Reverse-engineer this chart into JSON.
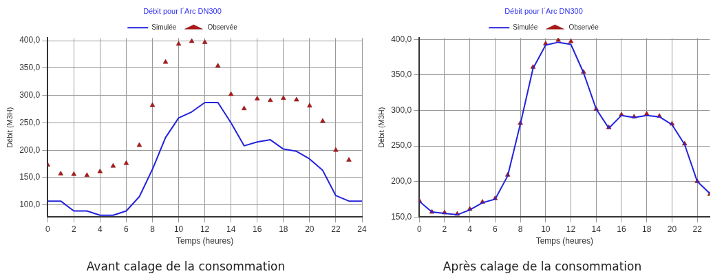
{
  "chart_data": [
    {
      "type": "line",
      "title": "Débit pour l´Arc DN300",
      "xlabel": "Temps (heures)",
      "ylabel": "Débit (M3H)",
      "legend": "top",
      "grid": true,
      "x": [
        0,
        1,
        2,
        3,
        4,
        5,
        6,
        7,
        8,
        9,
        10,
        11,
        12,
        13,
        14,
        15,
        16,
        17,
        18,
        19,
        20,
        21,
        22,
        23
      ],
      "series": [
        {
          "name": "Simulée",
          "type": "line",
          "marker": "none",
          "color": "#2222dd",
          "x": [
            0,
            1,
            2,
            3,
            4,
            5,
            6,
            7,
            8,
            9,
            10,
            11,
            12,
            13,
            14,
            15,
            16,
            17,
            18,
            19,
            20,
            21,
            22,
            23,
            24
          ],
          "values": [
            107,
            107,
            89,
            89,
            81,
            81,
            89,
            115,
            165,
            223,
            259,
            270,
            287,
            287,
            250,
            208,
            215,
            219,
            202,
            198,
            184,
            163,
            117,
            107,
            107
          ]
        },
        {
          "name": "Observée",
          "type": "scatter",
          "marker": "triangle",
          "color": "#b01818",
          "values": [
            173,
            157,
            156,
            154,
            161,
            171,
            176,
            209,
            282,
            361,
            394,
            399,
            397,
            354,
            302,
            276,
            294,
            291,
            295,
            292,
            281,
            253,
            200,
            182
          ]
        }
      ],
      "xlim": [
        0,
        24
      ],
      "xticks": [
        0,
        2,
        4,
        6,
        8,
        10,
        12,
        14,
        16,
        18,
        20,
        22,
        24
      ],
      "ylim": [
        78,
        405
      ],
      "yticks": [
        {
          "value": 100,
          "label": "100,0"
        },
        {
          "value": 150,
          "label": "150,0"
        },
        {
          "value": 200,
          "label": "200,0"
        },
        {
          "value": 250,
          "label": "250,0"
        },
        {
          "value": 300,
          "label": "300,0"
        },
        {
          "value": 350,
          "label": "350,0"
        },
        {
          "value": 400,
          "label": "400,0"
        }
      ],
      "annotations": [
        "Avant calage de la consommation"
      ]
    },
    {
      "type": "line",
      "title": "Débit pour l´Arc DN300",
      "xlabel": "Temps (heures)",
      "ylabel": "Débit (M3H)",
      "legend": "top",
      "grid": true,
      "x": [
        0,
        1,
        2,
        3,
        4,
        5,
        6,
        7,
        8,
        9,
        10,
        11,
        12,
        13,
        14,
        15,
        16,
        17,
        18,
        19,
        20,
        21,
        22,
        23
      ],
      "series": [
        {
          "name": "Simulée",
          "type": "line",
          "marker": "none",
          "color": "#2222dd",
          "values": [
            172,
            157,
            155,
            153,
            160,
            170,
            175,
            208,
            281,
            359,
            392,
            396,
            393,
            353,
            302,
            275,
            293,
            290,
            293,
            291,
            280,
            252,
            200,
            183
          ]
        },
        {
          "name": "Observée",
          "type": "scatter",
          "marker": "triangle",
          "color": "#b01818",
          "values": [
            173,
            157,
            156,
            154,
            161,
            171,
            176,
            209,
            282,
            361,
            394,
            399,
            397,
            354,
            302,
            276,
            294,
            291,
            295,
            292,
            281,
            253,
            200,
            182
          ]
        }
      ],
      "xlim": [
        0,
        23
      ],
      "xticks": [
        0,
        2,
        4,
        6,
        8,
        10,
        12,
        14,
        16,
        18,
        20,
        22
      ],
      "ylim": [
        150,
        402
      ],
      "yticks": [
        {
          "value": 150,
          "label": "150,0"
        },
        {
          "value": 200,
          "label": "200,0"
        },
        {
          "value": 250,
          "label": "250,0"
        },
        {
          "value": 300,
          "label": "300,0"
        },
        {
          "value": 350,
          "label": "350,0"
        },
        {
          "value": 400,
          "label": "400,0"
        }
      ],
      "annotations": [
        "Après calage de la consommation"
      ]
    }
  ]
}
